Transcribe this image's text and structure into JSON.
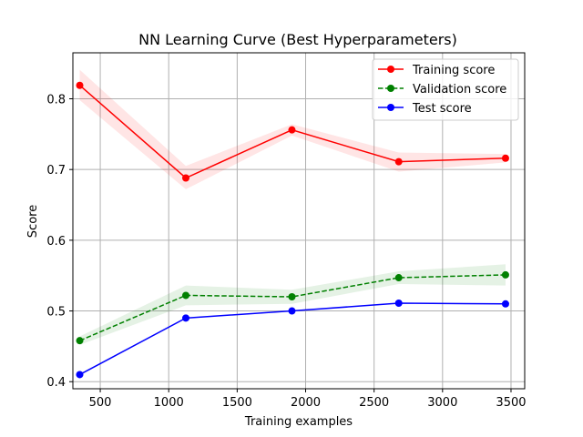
{
  "chart_data": {
    "type": "line",
    "title": "NN Learning Curve (Best Hyperparameters)",
    "xlabel": "Training examples",
    "ylabel": "Score",
    "xlim": [
      300,
      3600
    ],
    "ylim": [
      0.39,
      0.865
    ],
    "xticks": [
      500,
      1000,
      1500,
      2000,
      2500,
      3000,
      3500
    ],
    "yticks": [
      0.4,
      0.5,
      0.6,
      0.7,
      0.8
    ],
    "grid": true,
    "legend_position": "top-right",
    "x": [
      350,
      1125,
      1900,
      2680,
      3460
    ],
    "series": [
      {
        "name": "Training score",
        "color": "#ff0000",
        "style": "solid",
        "values": [
          0.819,
          0.688,
          0.756,
          0.711,
          0.716
        ],
        "band_lower": [
          0.798,
          0.672,
          0.748,
          0.697,
          0.71
        ],
        "band_upper": [
          0.841,
          0.705,
          0.764,
          0.724,
          0.722
        ]
      },
      {
        "name": "Validation score",
        "color": "#008000",
        "style": "dashed",
        "values": [
          0.458,
          0.522,
          0.52,
          0.547,
          0.551
        ],
        "band_lower": [
          0.452,
          0.508,
          0.51,
          0.538,
          0.536
        ],
        "band_upper": [
          0.464,
          0.536,
          0.53,
          0.556,
          0.566
        ]
      },
      {
        "name": "Test score",
        "color": "#0000ff",
        "style": "solid",
        "values": [
          0.41,
          0.49,
          0.5,
          0.511,
          0.51
        ]
      }
    ]
  }
}
